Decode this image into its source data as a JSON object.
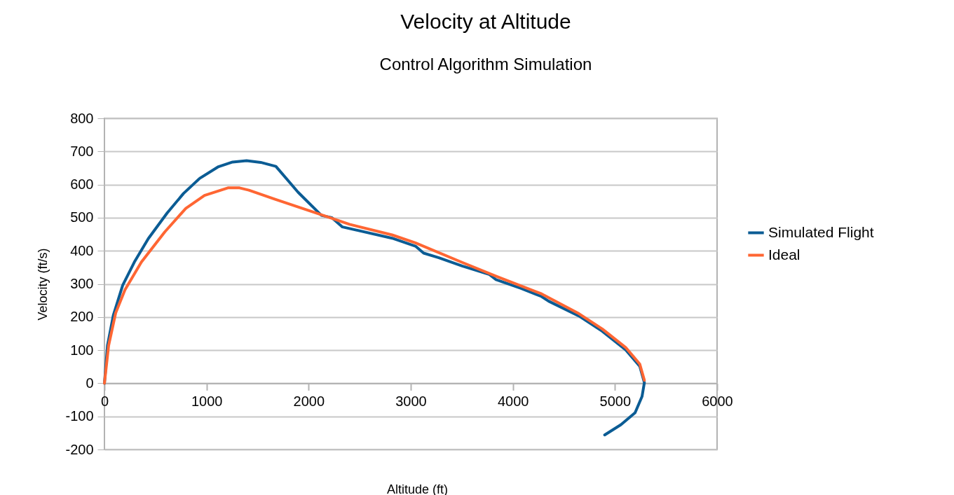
{
  "chart_data": {
    "type": "line",
    "title": "Velocity at Altitude",
    "subtitle": "Control Algorithm Simulation",
    "xlabel": "Altitude (ft)",
    "ylabel": "Velocity (ft/s)",
    "xlim": [
      0,
      6000
    ],
    "xticks": [
      0,
      1000,
      2000,
      3000,
      4000,
      5000,
      6000
    ],
    "ylim": [
      -200,
      800
    ],
    "yticks": [
      -200,
      -100,
      0,
      100,
      200,
      300,
      400,
      500,
      600,
      700,
      800
    ],
    "grid": "y",
    "legend": "right",
    "line_style": "solid",
    "series": [
      {
        "name": "Simulated Flight",
        "color": "#0b5c94",
        "x": [
          0,
          30,
          87,
          179,
          293,
          430,
          614,
          774,
          934,
          1117,
          1255,
          1392,
          1530,
          1679,
          1896,
          2125,
          2228,
          2331,
          2817,
          3046,
          3126,
          3275,
          3503,
          3767,
          3835,
          4076,
          4281,
          4350,
          4648,
          4876,
          5105,
          5243,
          5288,
          5265,
          5197,
          5059,
          4899
        ],
        "values": [
          0,
          114,
          205,
          296,
          366,
          437,
          514,
          573,
          619,
          654,
          668,
          672,
          667,
          655,
          577,
          507,
          500,
          472,
          438,
          414,
          393,
          379,
          354,
          329,
          313,
          287,
          262,
          248,
          203,
          157,
          101,
          51,
          2,
          -40,
          -89,
          -125,
          -156
        ]
      },
      {
        "name": "Ideal",
        "color": "#ff6633",
        "x": [
          0,
          41,
          110,
          201,
          362,
          591,
          797,
          980,
          1209,
          1323,
          1415,
          1667,
          2102,
          2400,
          2817,
          3046,
          3503,
          3846,
          4281,
          4648,
          4876,
          5105,
          5243,
          5288
        ],
        "values": [
          0,
          114,
          212,
          282,
          366,
          457,
          528,
          567,
          590,
          590,
          583,
          556,
          511,
          480,
          448,
          424,
          365,
          322,
          270,
          210,
          164,
          108,
          58,
          9
        ]
      }
    ]
  }
}
